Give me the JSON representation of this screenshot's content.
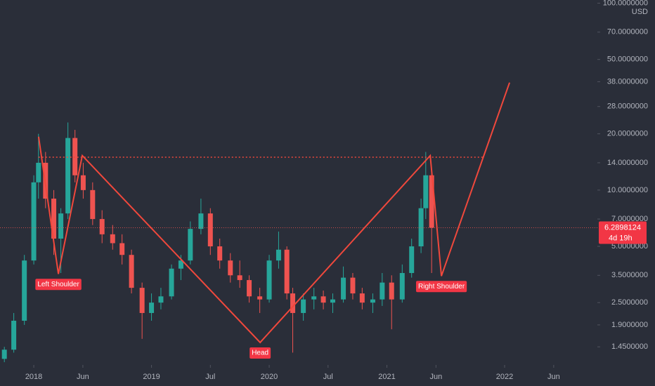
{
  "chart_data": {
    "type": "candlestick",
    "y_unit": "USD",
    "log_scale": true,
    "grid": false,
    "up_color": "#26a69a",
    "down_color": "#ef5350",
    "xlim": [
      2017.713,
      2022.788
    ],
    "xticks": [
      {
        "value": 2018,
        "label": "2018"
      },
      {
        "value": 2018.417,
        "label": "Jun"
      },
      {
        "value": 2019,
        "label": "2019"
      },
      {
        "value": 2019.5,
        "label": "Jul"
      },
      {
        "value": 2020,
        "label": "2020"
      },
      {
        "value": 2020.5,
        "label": "Jul"
      },
      {
        "value": 2021,
        "label": "2021"
      },
      {
        "value": 2021.417,
        "label": "Jun"
      },
      {
        "value": 2022,
        "label": "2022"
      },
      {
        "value": 2022.417,
        "label": "Jun"
      }
    ],
    "ylim": [
      1.16,
      104
    ],
    "yticks": [
      {
        "value": 1.45,
        "label": "1.4500000"
      },
      {
        "value": 1.9,
        "label": "1.9000000"
      },
      {
        "value": 2.5,
        "label": "2.5000000"
      },
      {
        "value": 3.5,
        "label": "3.5000000"
      },
      {
        "value": 5,
        "label": "5.0000000"
      },
      {
        "value": 7,
        "label": "7.0000000"
      },
      {
        "value": 10,
        "label": "10.0000000"
      },
      {
        "value": 14,
        "label": "14.0000000"
      },
      {
        "value": 20,
        "label": "20.0000000"
      },
      {
        "value": 28,
        "label": "28.0000000"
      },
      {
        "value": 38,
        "label": "38.0000000"
      },
      {
        "value": 50,
        "label": "50.0000000"
      },
      {
        "value": 70,
        "label": "70.0000000"
      },
      {
        "value": 100,
        "label": "100.0000000"
      }
    ],
    "candles": {
      "x": [
        2017.75,
        2017.83,
        2017.92,
        2018.0,
        2018.04,
        2018.1,
        2018.17,
        2018.23,
        2018.29,
        2018.35,
        2018.42,
        2018.5,
        2018.58,
        2018.67,
        2018.75,
        2018.83,
        2018.92,
        2019.0,
        2019.08,
        2019.17,
        2019.25,
        2019.33,
        2019.42,
        2019.5,
        2019.58,
        2019.67,
        2019.75,
        2019.83,
        2019.92,
        2020.0,
        2020.08,
        2020.15,
        2020.2,
        2020.29,
        2020.38,
        2020.46,
        2020.54,
        2020.63,
        2020.71,
        2020.79,
        2020.88,
        2020.96,
        2021.04,
        2021.13,
        2021.21,
        2021.29,
        2021.33,
        2021.38
      ],
      "open": [
        1.25,
        1.4,
        2.0,
        4.2,
        11,
        14,
        9,
        5.5,
        7.5,
        19,
        12,
        10,
        7,
        5.8,
        5.2,
        4.5,
        3.0,
        2.2,
        2.5,
        2.7,
        3.8,
        4.2,
        6.2,
        7.5,
        5.0,
        4.2,
        3.5,
        3.3,
        2.7,
        2.6,
        4.2,
        4.8,
        2.8,
        2.2,
        2.6,
        2.7,
        2.5,
        2.6,
        3.4,
        2.8,
        2.5,
        2.6,
        3.2,
        2.6,
        3.6,
        5.0,
        8.0,
        12
      ],
      "high": [
        1.45,
        2.2,
        4.5,
        12,
        20,
        16,
        10,
        8,
        23,
        21,
        14,
        11,
        7.8,
        6.5,
        5.8,
        4.8,
        3.2,
        2.8,
        3.0,
        4.0,
        4.5,
        6.8,
        9.0,
        8.0,
        5.5,
        4.6,
        4.2,
        3.5,
        3.0,
        4.5,
        6.0,
        5.0,
        3.0,
        2.8,
        3.0,
        2.9,
        2.8,
        3.9,
        3.6,
        3.0,
        2.8,
        3.6,
        3.5,
        4.0,
        5.5,
        9.0,
        16,
        13
      ],
      "low": [
        1.2,
        1.35,
        1.9,
        4.0,
        9,
        8,
        4.5,
        3.6,
        7,
        11,
        9,
        6.5,
        5.2,
        4.8,
        4.0,
        2.8,
        1.6,
        2.0,
        2.3,
        2.6,
        3.3,
        4.0,
        5.8,
        4.5,
        3.8,
        3.2,
        3.0,
        2.5,
        2.2,
        2.5,
        3.8,
        2.6,
        1.35,
        2.0,
        2.3,
        2.3,
        2.2,
        2.5,
        2.6,
        2.3,
        2.2,
        2.4,
        1.8,
        2.5,
        3.4,
        4.6,
        7,
        3.6
      ],
      "close": [
        1.4,
        2.0,
        4.2,
        11,
        14,
        9,
        5.5,
        7.5,
        19,
        12,
        10,
        7,
        5.8,
        5.2,
        4.5,
        3.0,
        2.2,
        2.5,
        2.7,
        3.8,
        4.2,
        6.2,
        7.5,
        5.0,
        4.2,
        3.5,
        3.3,
        2.7,
        2.6,
        4.2,
        4.8,
        2.8,
        2.2,
        2.6,
        2.7,
        2.5,
        2.6,
        3.4,
        2.8,
        2.5,
        2.6,
        3.2,
        2.6,
        3.6,
        5.0,
        8.0,
        12,
        6.2898124
      ]
    },
    "last_price": 6.2898124,
    "countdown": "4d 19h",
    "pattern": {
      "color": "#f0483c",
      "x": [
        2018.041,
        2018.209,
        2018.412,
        2019.923,
        2021.368,
        2021.463,
        2022.042
      ],
      "y": [
        19.3,
        3.56,
        15.3,
        1.53,
        15.3,
        3.47,
        37.6
      ],
      "labels": [
        "Left Shoulder",
        "Head",
        "Right Shoulder"
      ]
    },
    "neckline": {
      "y": 15,
      "x": [
        2018.04,
        2021.82
      ]
    }
  }
}
